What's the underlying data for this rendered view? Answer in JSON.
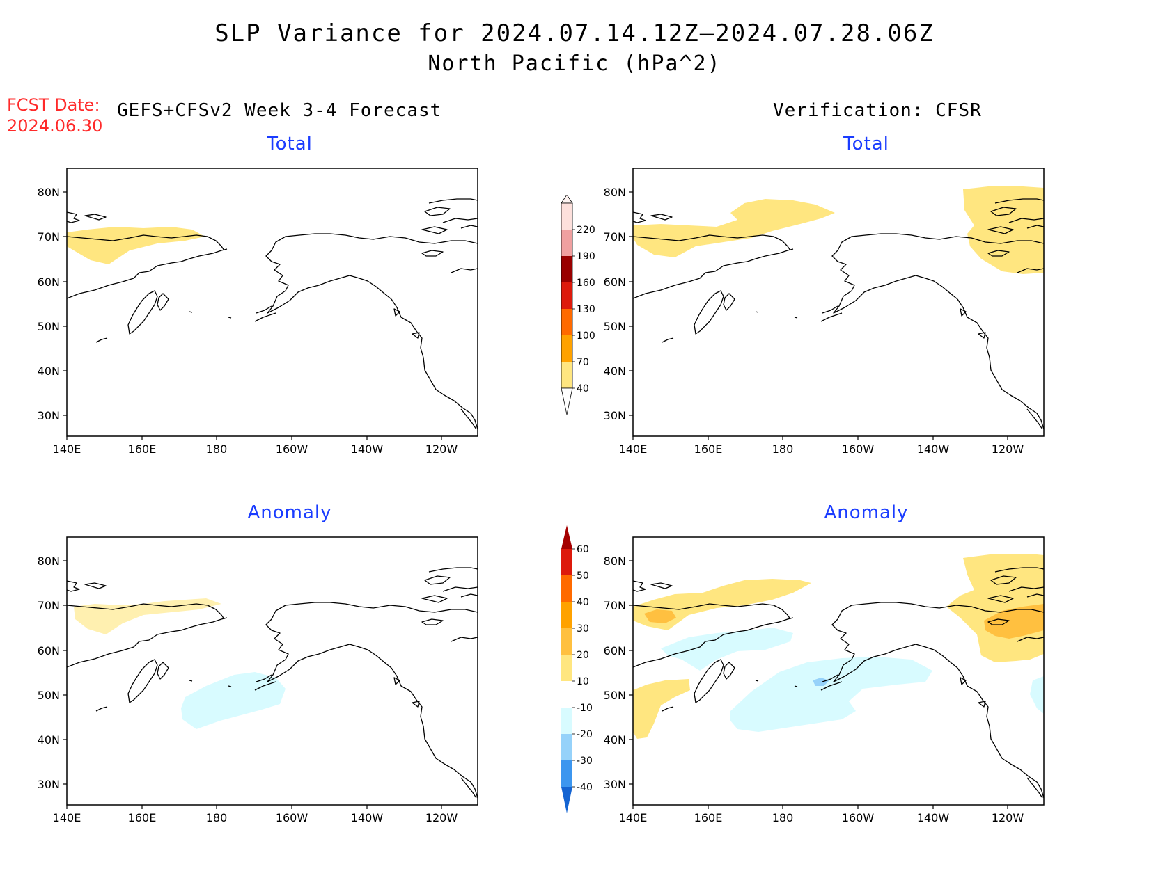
{
  "title": {
    "line1": "SLP Variance for 2024.07.14.12Z–2024.07.28.06Z",
    "line2": "North Pacific (hPa^2)"
  },
  "fcst_date": {
    "label": "FCST Date:",
    "value": "2024.06.30"
  },
  "columns": {
    "left": "GEFS+CFSv2 Week 3-4 Forecast",
    "right": "Verification: CFSR"
  },
  "panels": [
    {
      "title": "Total"
    },
    {
      "title": "Total"
    },
    {
      "title": "Anomaly"
    },
    {
      "title": "Anomaly"
    }
  ],
  "axes": {
    "lat_labels": [
      "80N",
      "70N",
      "60N",
      "50N",
      "40N",
      "30N"
    ],
    "lon_labels": [
      "140E",
      "160E",
      "180",
      "160W",
      "140W",
      "120W"
    ]
  },
  "colorbar_total": {
    "labels": [
      "220",
      "190",
      "160",
      "130",
      "100",
      "70",
      "40"
    ],
    "colors": [
      "#fde0dc",
      "#f0a0a0",
      "#990000",
      "#dd1a0c",
      "#ff6a00",
      "#ffa200",
      "#ffe680"
    ]
  },
  "colorbar_anomaly": {
    "labels": [
      "60",
      "50",
      "40",
      "30",
      "20",
      "10",
      "-10",
      "-20",
      "-30",
      "-40"
    ],
    "colors_top_to_bottom": [
      "#a50000",
      "#dd1a0c",
      "#ff6a00",
      "#ffa200",
      "#ffc040",
      "#ffe680",
      "#ffffff",
      "#d8fbff",
      "#96d2fa",
      "#3c96ef",
      "#1464d2"
    ]
  },
  "shade_colors": {
    "light_yellow": "#ffe680",
    "pale_yellow": "#fff0b0",
    "orange": "#ffa200",
    "light_orange": "#ffc040",
    "light_cyan": "#d8fbff",
    "light_blue": "#96d2fa"
  }
}
